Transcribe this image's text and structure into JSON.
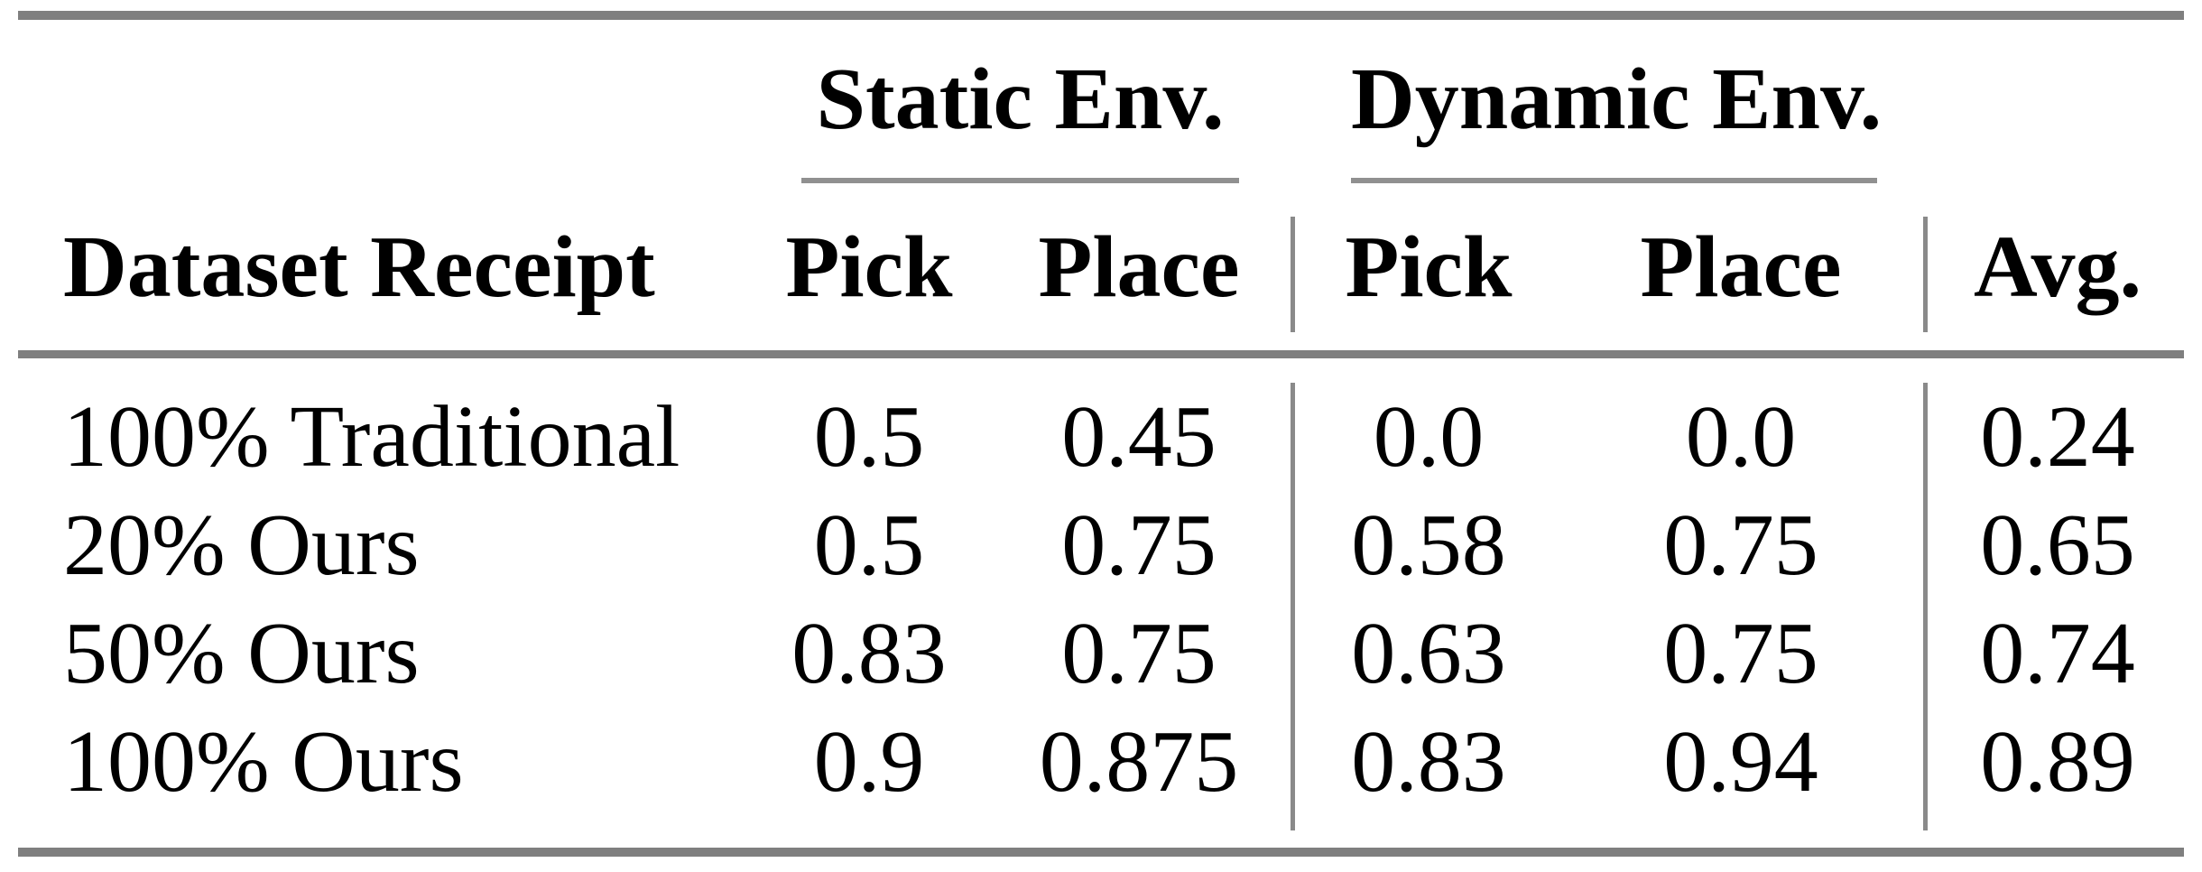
{
  "table": {
    "groups": [
      {
        "label": "Static Env."
      },
      {
        "label": "Dynamic Env."
      }
    ],
    "header": {
      "dataset": "Dataset Receipt",
      "static_pick": "Pick",
      "static_place": "Place",
      "dynamic_pick": "Pick",
      "dynamic_place": "Place",
      "avg": "Avg."
    },
    "rows": [
      {
        "label": "100% Traditional",
        "static_pick": "0.5",
        "static_place": "0.45",
        "dynamic_pick": "0.0",
        "dynamic_place": "0.0",
        "avg": "0.24"
      },
      {
        "label": "20% Ours",
        "static_pick": "0.5",
        "static_place": "0.75",
        "dynamic_pick": "0.58",
        "dynamic_place": "0.75",
        "avg": "0.65"
      },
      {
        "label": "50% Ours",
        "static_pick": "0.83",
        "static_place": "0.75",
        "dynamic_pick": "0.63",
        "dynamic_place": "0.75",
        "avg": "0.74"
      },
      {
        "label": "100% Ours",
        "static_pick": "0.9",
        "static_place": "0.875",
        "dynamic_pick": "0.83",
        "dynamic_place": "0.94",
        "avg": "0.89"
      }
    ],
    "colors": {
      "rule_thick": "#7f7f7f",
      "rule_thin": "#909090",
      "text": "#000000",
      "background": "#ffffff"
    }
  }
}
